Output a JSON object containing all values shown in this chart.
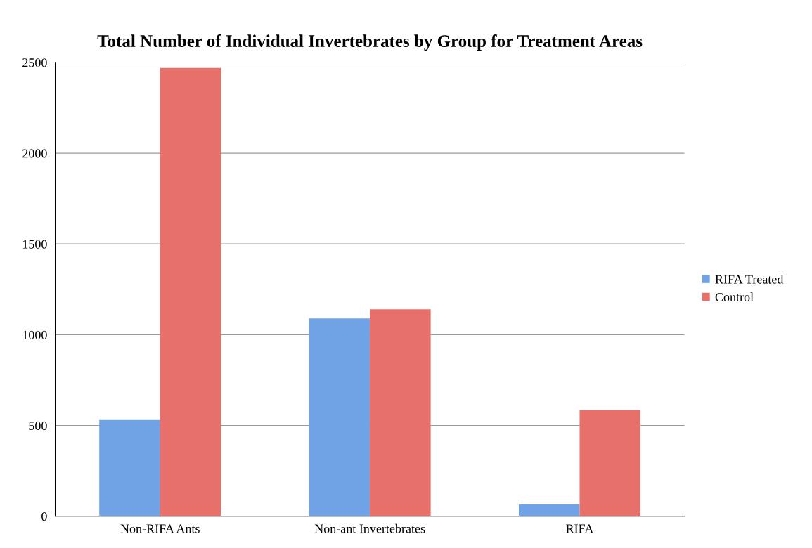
{
  "chart_data": {
    "type": "bar",
    "title": "Total Number of Individual Invertebrates by Group for Treatment Areas",
    "categories": [
      "Non-RIFA Ants",
      "Non-ant Invertebrates",
      "RIFA"
    ],
    "series": [
      {
        "name": "RIFA Treated",
        "color": "#6fa3e6",
        "values": [
          530,
          1090,
          65
        ]
      },
      {
        "name": "Control",
        "color": "#e8706a",
        "values": [
          2470,
          1140,
          585
        ]
      }
    ],
    "ylim": [
      0,
      2500
    ],
    "yticks": [
      0,
      500,
      1000,
      1500,
      2000,
      2500
    ],
    "grid": "y",
    "legend": "right"
  }
}
